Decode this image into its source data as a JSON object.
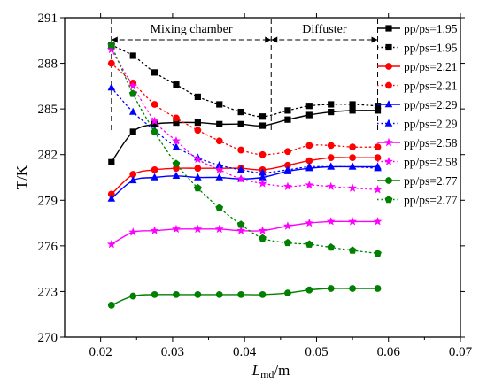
{
  "chart_data": {
    "type": "line",
    "title": "",
    "xlabel": {
      "main": "L",
      "sub": "md",
      "unit": "/m"
    },
    "ylabel": "T/K",
    "xlim": [
      0.015,
      0.07
    ],
    "ylim": [
      270,
      291
    ],
    "xticks": [
      "0.02",
      "0.03",
      "0.04",
      "0.05",
      "0.06",
      "0.07"
    ],
    "yticks": [
      "270",
      "273",
      "276",
      "279",
      "282",
      "285",
      "288",
      "291"
    ],
    "grid": false,
    "legend_position": "right",
    "regions": [
      {
        "label": "Mixing chamber",
        "x_start": 0.0215,
        "x_end": 0.0437
      },
      {
        "label": "Diffuster",
        "x_start": 0.0437,
        "x_end": 0.0585
      }
    ],
    "series": [
      {
        "name": "pp/ps=1.95",
        "color": "#000000",
        "marker": "square",
        "dashed": false,
        "x": [
          0.0215,
          0.0245,
          0.0275,
          0.0305,
          0.0335,
          0.0365,
          0.0395,
          0.0425,
          0.046,
          0.049,
          0.052,
          0.055,
          0.0585
        ],
        "y": [
          281.5,
          283.5,
          284.0,
          284.1,
          284.1,
          284.0,
          284.0,
          283.9,
          284.3,
          284.6,
          284.8,
          284.9,
          284.9
        ]
      },
      {
        "name": "pp/ps=1.95",
        "color": "#000000",
        "marker": "square",
        "dashed": true,
        "x": [
          0.0215,
          0.0245,
          0.0275,
          0.0305,
          0.0335,
          0.0365,
          0.0395,
          0.0425,
          0.046,
          0.049,
          0.052,
          0.055,
          0.0585
        ],
        "y": [
          289.2,
          288.5,
          287.4,
          286.6,
          285.8,
          285.3,
          284.8,
          284.5,
          284.9,
          285.2,
          285.3,
          285.3,
          285.2
        ]
      },
      {
        "name": "pp/ps=2.21",
        "color": "#ff0000",
        "marker": "circle",
        "dashed": false,
        "x": [
          0.0215,
          0.0245,
          0.0275,
          0.0305,
          0.0335,
          0.0365,
          0.0395,
          0.0425,
          0.046,
          0.049,
          0.052,
          0.055,
          0.0585
        ],
        "y": [
          279.4,
          280.7,
          281.0,
          281.1,
          281.1,
          281.1,
          281.1,
          281.0,
          281.3,
          281.6,
          281.8,
          281.8,
          281.8
        ]
      },
      {
        "name": "pp/ps=2.21",
        "color": "#ff0000",
        "marker": "circle",
        "dashed": true,
        "x": [
          0.0215,
          0.0245,
          0.0275,
          0.0305,
          0.0335,
          0.0365,
          0.0395,
          0.0425,
          0.046,
          0.049,
          0.052,
          0.055,
          0.0585
        ],
        "y": [
          288.0,
          286.7,
          285.3,
          284.4,
          283.6,
          282.9,
          282.3,
          282.0,
          282.2,
          282.6,
          282.6,
          282.5,
          282.5
        ]
      },
      {
        "name": "pp/ps=2.29",
        "color": "#0000ff",
        "marker": "triangle",
        "dashed": false,
        "x": [
          0.0215,
          0.0245,
          0.0275,
          0.0305,
          0.0335,
          0.0365,
          0.0395,
          0.0425,
          0.046,
          0.049,
          0.052,
          0.055,
          0.0585
        ],
        "y": [
          279.1,
          280.3,
          280.5,
          280.6,
          280.5,
          280.5,
          280.4,
          280.5,
          280.9,
          281.1,
          281.2,
          281.2,
          281.2
        ]
      },
      {
        "name": "pp/ps=2.29",
        "color": "#0000ff",
        "marker": "triangle",
        "dashed": true,
        "x": [
          0.0215,
          0.0245,
          0.0275,
          0.0305,
          0.0335,
          0.0365,
          0.0395,
          0.0425,
          0.046,
          0.049,
          0.052,
          0.055,
          0.0585
        ],
        "y": [
          286.4,
          284.8,
          283.6,
          282.5,
          281.8,
          281.3,
          281.0,
          280.8,
          281.0,
          281.2,
          281.2,
          281.2,
          281.1
        ]
      },
      {
        "name": "pp/ps=2.58",
        "color": "#ff00ff",
        "marker": "star",
        "dashed": false,
        "x": [
          0.0215,
          0.0245,
          0.0275,
          0.0305,
          0.0335,
          0.0365,
          0.0395,
          0.0425,
          0.046,
          0.049,
          0.052,
          0.055,
          0.0585
        ],
        "y": [
          276.1,
          276.9,
          277.0,
          277.1,
          277.1,
          277.1,
          277.0,
          277.0,
          277.3,
          277.5,
          277.6,
          277.6,
          277.6
        ]
      },
      {
        "name": "pp/ps=2.58",
        "color": "#ff00ff",
        "marker": "star",
        "dashed": true,
        "x": [
          0.0215,
          0.0245,
          0.0275,
          0.0305,
          0.0335,
          0.0365,
          0.0395,
          0.0425,
          0.046,
          0.049,
          0.052,
          0.055,
          0.0585
        ],
        "y": [
          288.9,
          286.5,
          284.2,
          282.9,
          281.7,
          281.0,
          280.4,
          280.1,
          279.9,
          280.0,
          279.9,
          279.8,
          279.7
        ]
      },
      {
        "name": "pp/ps=2.77",
        "color": "#008000",
        "marker": "circle",
        "dashed": false,
        "x": [
          0.0215,
          0.0245,
          0.0275,
          0.0305,
          0.0335,
          0.0365,
          0.0395,
          0.0425,
          0.046,
          0.049,
          0.052,
          0.055,
          0.0585
        ],
        "y": [
          272.1,
          272.7,
          272.8,
          272.8,
          272.8,
          272.8,
          272.8,
          272.8,
          272.9,
          273.1,
          273.2,
          273.2,
          273.2
        ]
      },
      {
        "name": "pp/ps=2.77",
        "color": "#008000",
        "marker": "pentagon",
        "dashed": true,
        "x": [
          0.0215,
          0.0245,
          0.0275,
          0.0305,
          0.0335,
          0.0365,
          0.0395,
          0.0425,
          0.046,
          0.049,
          0.052,
          0.055,
          0.0585
        ],
        "y": [
          289.2,
          286.0,
          283.5,
          281.4,
          279.8,
          278.5,
          277.4,
          276.5,
          276.2,
          276.1,
          275.9,
          275.7,
          275.5
        ]
      }
    ]
  }
}
